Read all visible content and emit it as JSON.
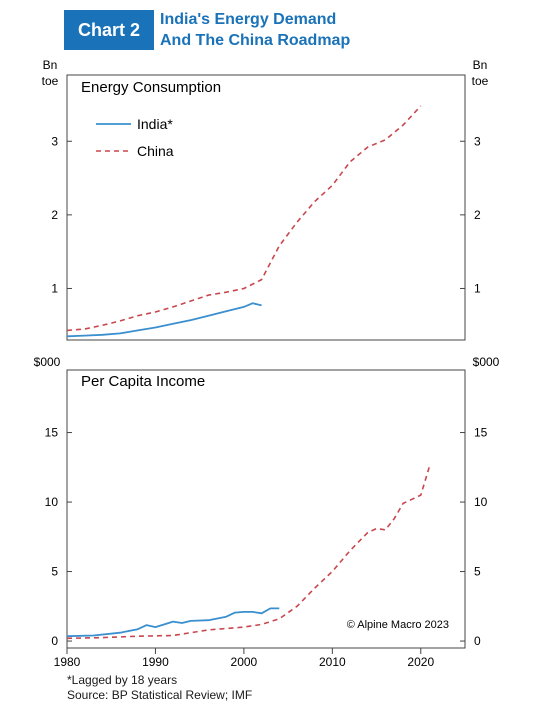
{
  "header": {
    "badge": "Chart 2",
    "title_line1": "India's Energy Demand",
    "title_line2": "And The China Roadmap"
  },
  "footnotes": {
    "lag_note": "*Lagged by 18 years",
    "source": "Source: BP Statistical Review; IMF"
  },
  "colors": {
    "india": "#3a8fcf",
    "china": "#c8474e",
    "accent": "#1a72b8"
  },
  "x_axis": {
    "ticks": [
      "1980",
      "1990",
      "2000",
      "2010",
      "2020"
    ],
    "xlim": [
      1980,
      2025
    ]
  },
  "chart_data": [
    {
      "type": "line",
      "title": "Energy Consumption",
      "unit_label_top": "Bn",
      "unit_label_bottom": "toe",
      "ylim": [
        0.3,
        3.9
      ],
      "yticks": [
        1,
        2,
        3
      ],
      "legend_position": "top-left",
      "series": [
        {
          "name": "India*",
          "style": "solid",
          "x": [
            1980,
            1982,
            1984,
            1986,
            1988,
            1990,
            1992,
            1994,
            1996,
            1998,
            2000,
            2001,
            2002
          ],
          "y": [
            0.35,
            0.36,
            0.37,
            0.39,
            0.43,
            0.47,
            0.52,
            0.57,
            0.63,
            0.69,
            0.75,
            0.8,
            0.77
          ]
        },
        {
          "name": "China",
          "style": "dashed",
          "x": [
            1980,
            1982,
            1984,
            1986,
            1988,
            1990,
            1992,
            1994,
            1996,
            1998,
            2000,
            2002,
            2004,
            2006,
            2008,
            2010,
            2012,
            2014,
            2016,
            2018,
            2020
          ],
          "y": [
            0.43,
            0.45,
            0.5,
            0.56,
            0.63,
            0.68,
            0.75,
            0.83,
            0.91,
            0.95,
            1.0,
            1.12,
            1.58,
            1.9,
            2.18,
            2.4,
            2.72,
            2.92,
            3.02,
            3.22,
            3.48
          ]
        }
      ]
    },
    {
      "type": "line",
      "title": "Per Capita Income",
      "unit_label": "$000",
      "ylim": [
        -0.5,
        19.5
      ],
      "yticks": [
        0,
        5,
        10,
        15
      ],
      "annotation": "© Alpine Macro 2023",
      "series": [
        {
          "name": "India*",
          "style": "solid",
          "x": [
            1980,
            1983,
            1986,
            1988,
            1989,
            1990,
            1992,
            1993,
            1994,
            1996,
            1998,
            1999,
            2000,
            2001,
            2002,
            2003,
            2004
          ],
          "y": [
            0.35,
            0.4,
            0.6,
            0.85,
            1.15,
            1.0,
            1.4,
            1.3,
            1.45,
            1.5,
            1.75,
            2.05,
            2.1,
            2.1,
            2.0,
            2.35,
            2.35
          ]
        },
        {
          "name": "China",
          "style": "dashed",
          "x": [
            1980,
            1984,
            1988,
            1992,
            1996,
            2000,
            2002,
            2004,
            2006,
            2008,
            2010,
            2012,
            2014,
            2015,
            2016,
            2017,
            2018,
            2019,
            2020,
            2021
          ],
          "y": [
            0.2,
            0.25,
            0.35,
            0.4,
            0.8,
            1.0,
            1.2,
            1.6,
            2.5,
            3.8,
            5.0,
            6.5,
            7.8,
            8.1,
            8.0,
            8.8,
            9.9,
            10.2,
            10.5,
            12.6
          ]
        }
      ]
    }
  ]
}
